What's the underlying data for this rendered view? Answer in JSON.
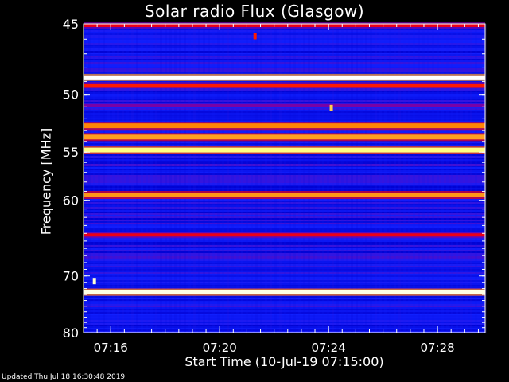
{
  "page": {
    "updated_text": "Updated Thu Jul 18 16:30:48 2019"
  },
  "chart_data": {
    "type": "heatmap",
    "title": "Solar radio Flux (Glasgow)",
    "xlabel": "Start Time (10-Jul-19 07:15:00)",
    "ylabel": "Frequency [MHz]",
    "x_ticks": [
      "07:16",
      "07:20",
      "07:24",
      "07:28"
    ],
    "x_tick_minutes": [
      1,
      5,
      9,
      13
    ],
    "xlim_minutes_after_start": [
      0,
      14.75
    ],
    "y_ticks": [
      45,
      50,
      55,
      60,
      70,
      80
    ],
    "ylim": [
      45,
      80
    ],
    "y_scale": "reciprocal",
    "colormap": [
      "#000060",
      "#0000d0",
      "#1020ff",
      "#8000a0",
      "#ff0000",
      "#ff8000",
      "#ffff80",
      "#ffffff"
    ],
    "background_level": 0.25,
    "bands": [
      {
        "freq": 45.1,
        "level": 0.55
      },
      {
        "freq": 48.7,
        "level": 1.0
      },
      {
        "freq": 49.3,
        "level": 0.6
      },
      {
        "freq": 50.9,
        "level": 0.42
      },
      {
        "freq": 52.6,
        "level": 0.72
      },
      {
        "freq": 53.6,
        "level": 0.75
      },
      {
        "freq": 54.8,
        "level": 0.86
      },
      {
        "freq": 59.4,
        "level": 0.74
      },
      {
        "freq": 64.2,
        "level": 0.55
      },
      {
        "freq": 72.6,
        "level": 0.97
      }
    ],
    "spots": [
      {
        "minute": 0.4,
        "freq": 70.8,
        "level": 0.95
      },
      {
        "minute": 9.1,
        "freq": 51.1,
        "level": 0.8
      },
      {
        "minute": 6.3,
        "freq": 45.8,
        "level": 0.6
      }
    ]
  }
}
